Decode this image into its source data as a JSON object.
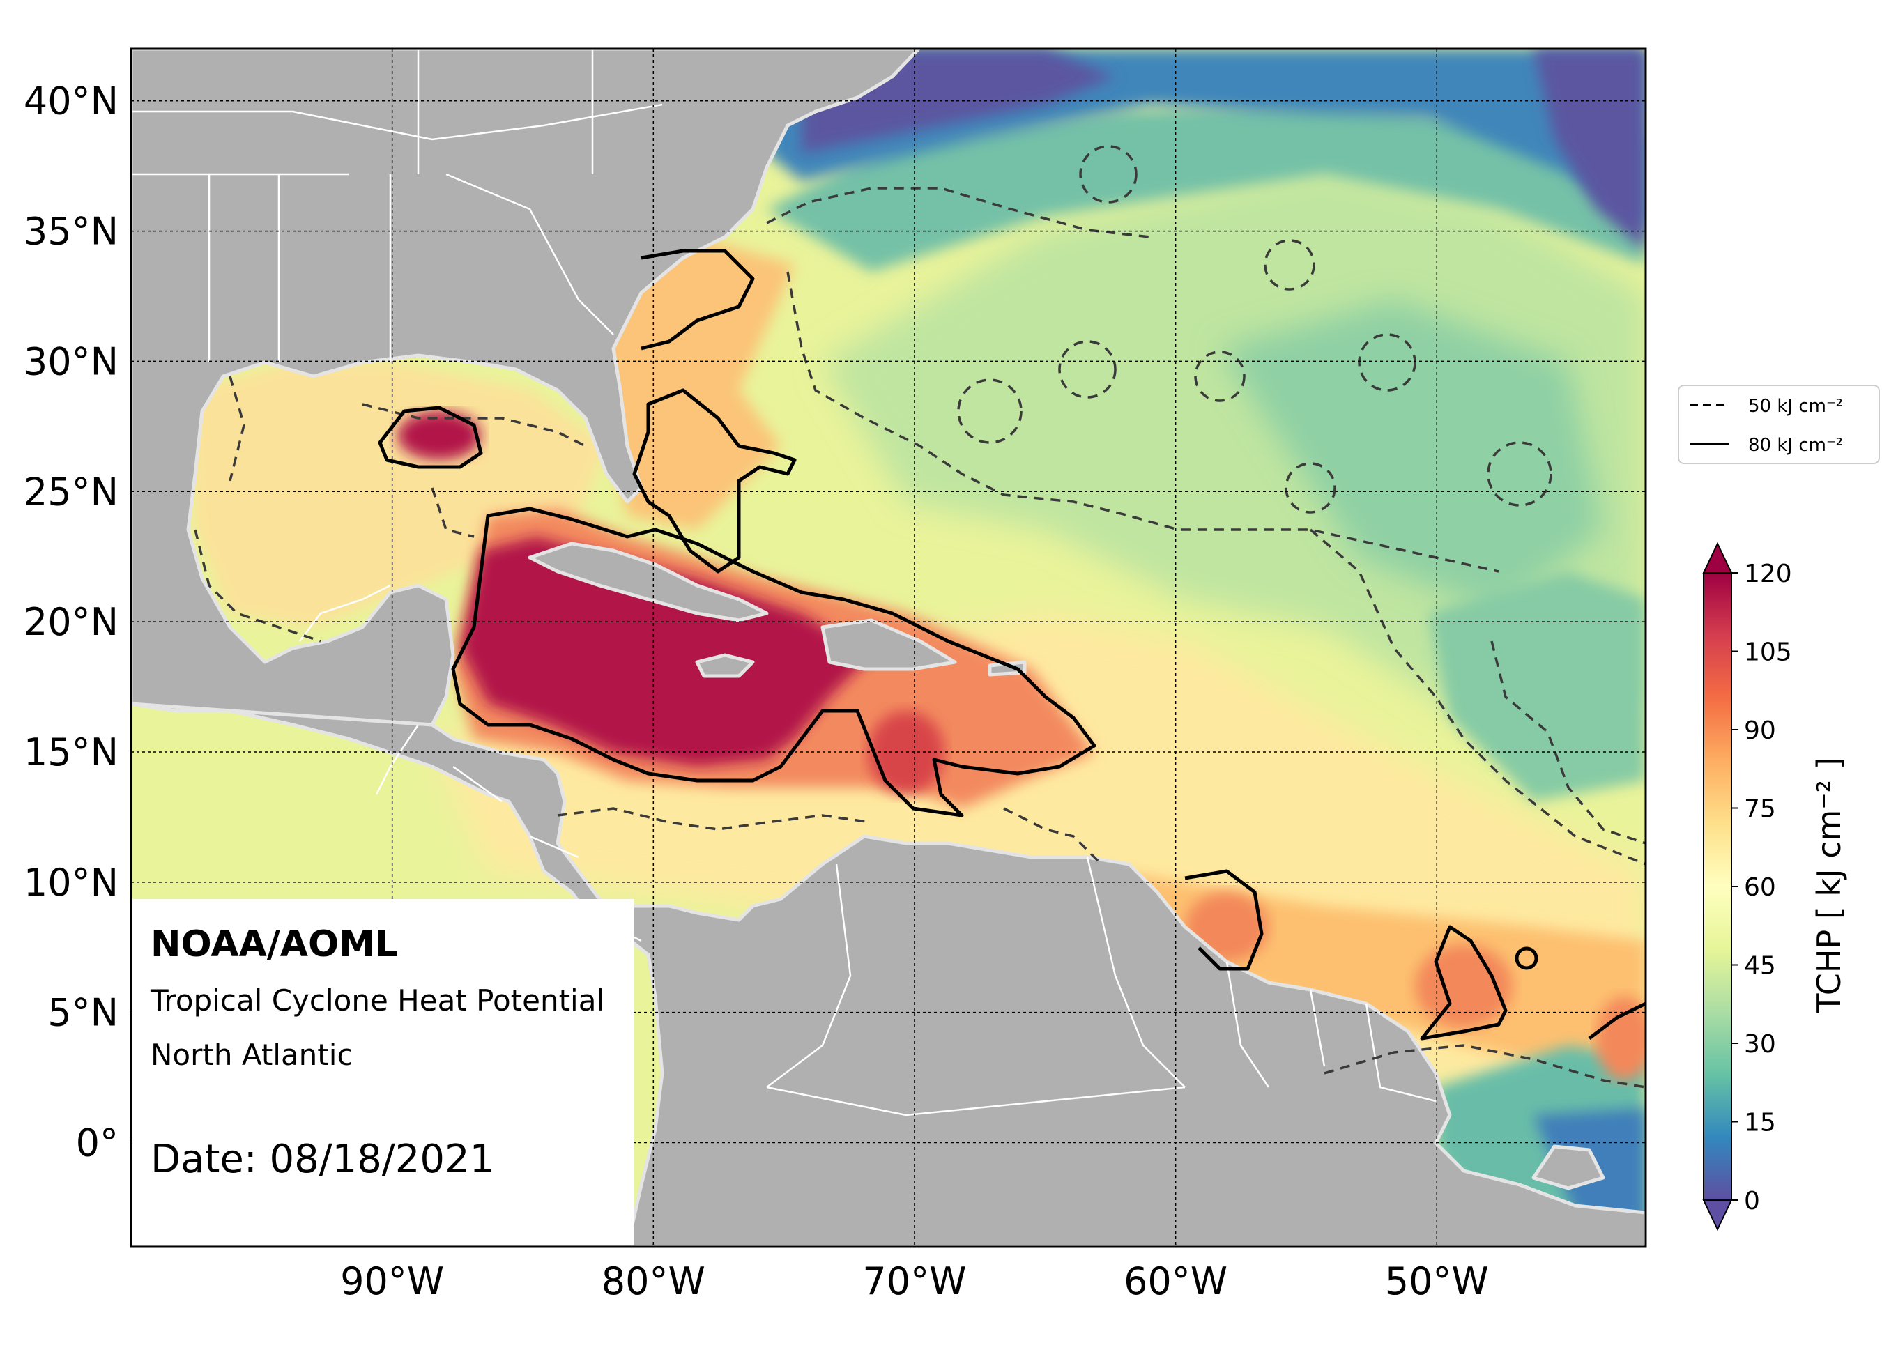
{
  "map": {
    "agency": "NOAA/AOML",
    "product": "Tropical Cyclone Heat Potential",
    "region": "North Atlantic",
    "date": "Date: 08/18/2021",
    "extent": {
      "lon_min": -100,
      "lon_max": -42,
      "lat_min": -4,
      "lat_max": 42
    },
    "lat_ticks": [
      {
        "value": 40,
        "label": "40°N"
      },
      {
        "value": 35,
        "label": "35°N"
      },
      {
        "value": 30,
        "label": "30°N"
      },
      {
        "value": 25,
        "label": "25°N"
      },
      {
        "value": 20,
        "label": "20°N"
      },
      {
        "value": 15,
        "label": "15°N"
      },
      {
        "value": 10,
        "label": "10°N"
      },
      {
        "value": 5,
        "label": "5°N"
      },
      {
        "value": 0,
        "label": "0°"
      }
    ],
    "lon_ticks": [
      {
        "value": -90,
        "label": "90°W"
      },
      {
        "value": -80,
        "label": "80°W"
      },
      {
        "value": -70,
        "label": "70°W"
      },
      {
        "value": -60,
        "label": "60°W"
      },
      {
        "value": -50,
        "label": "50°W"
      }
    ]
  },
  "legend": {
    "items": [
      {
        "style": "dashed",
        "label": "50 kJ cm⁻²"
      },
      {
        "style": "solid",
        "label": "80 kJ cm⁻²"
      }
    ]
  },
  "colorbar": {
    "title": "TCHP [ kJ cm⁻² ]",
    "min": 0,
    "max": 120,
    "ticks": [
      120,
      105,
      90,
      75,
      60,
      45,
      30,
      15,
      0
    ],
    "colors": [
      "#5e4fa2",
      "#3288bd",
      "#66c2a5",
      "#abdda4",
      "#e6f598",
      "#ffffbf",
      "#fee08b",
      "#fdae61",
      "#f46d43",
      "#d53e4f",
      "#9e0142"
    ]
  },
  "colors": {
    "land": "#b0b0b0",
    "coast": "#e4e4e4",
    "border": "#ffffff",
    "contour": "#000000"
  }
}
